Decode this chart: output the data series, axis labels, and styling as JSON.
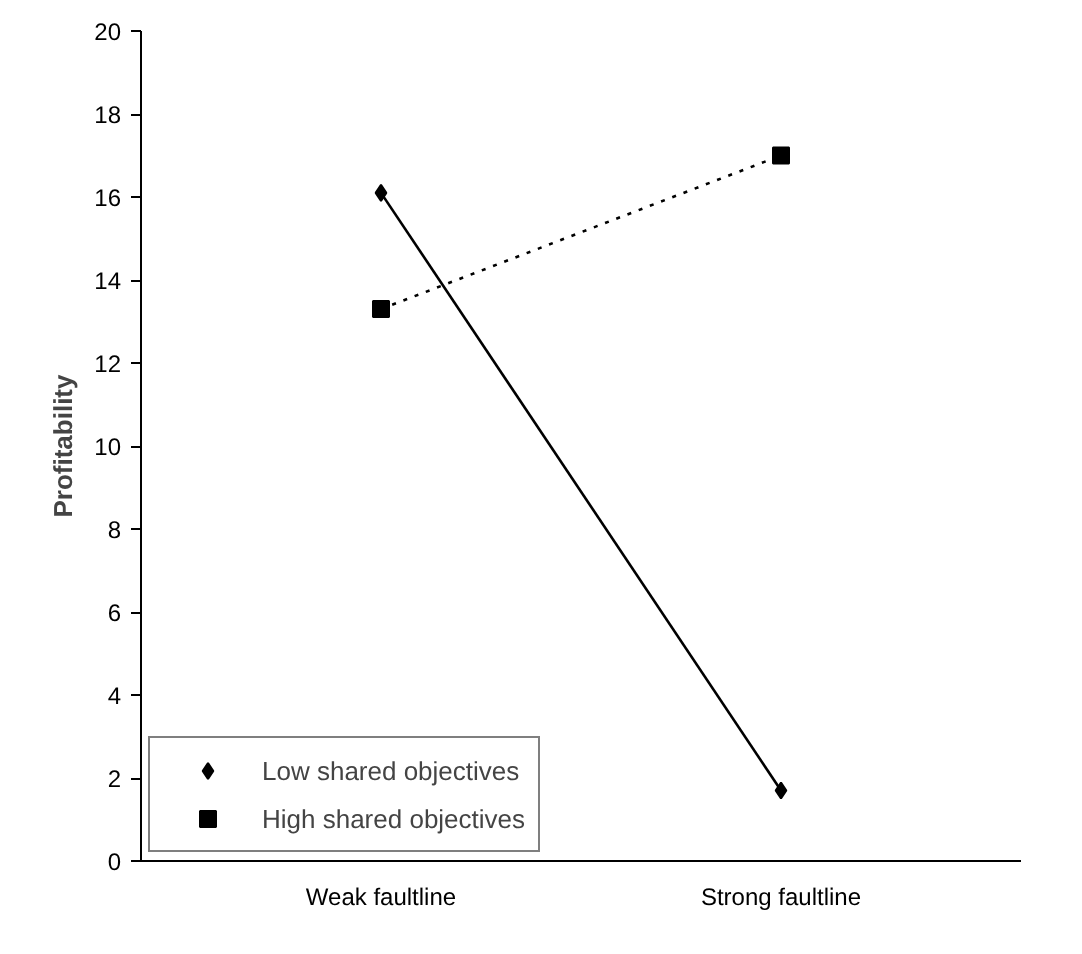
{
  "chart_data": {
    "type": "line",
    "ylabel": "Profitability",
    "categories": [
      "Weak faultline",
      "Strong faultline"
    ],
    "series": [
      {
        "name": "Low shared objectives",
        "color": "#000000",
        "values": [
          16.1,
          1.7
        ],
        "marker": "diamond",
        "line_style": "solid"
      },
      {
        "name": "High shared objectives",
        "color": "#000000",
        "values": [
          13.3,
          17.0
        ],
        "marker": "square",
        "line_style": "dotted"
      }
    ],
    "ylim": [
      0,
      20
    ],
    "yticks": [
      0,
      2,
      4,
      6,
      8,
      10,
      12,
      14,
      16,
      18,
      20
    ],
    "grid": false,
    "legend": "bottom left"
  }
}
